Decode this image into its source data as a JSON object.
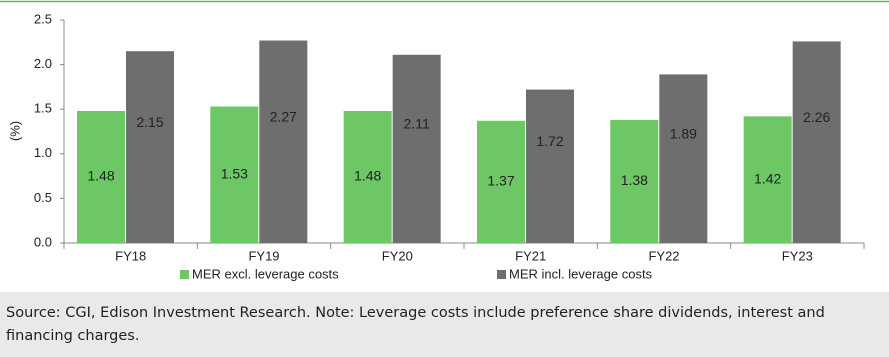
{
  "chart_data": {
    "type": "bar",
    "y_label": "(%)",
    "categories": [
      "FY18",
      "FY19",
      "FY20",
      "FY21",
      "FY22",
      "FY23"
    ],
    "series": [
      {
        "name": "MER excl. leverage costs",
        "color": "#6cc764",
        "values": [
          1.48,
          1.53,
          1.48,
          1.37,
          1.38,
          1.42
        ]
      },
      {
        "name": "MER incl. leverage costs",
        "color": "#6e6e6e",
        "values": [
          2.15,
          2.27,
          2.11,
          1.72,
          1.89,
          2.26
        ]
      }
    ],
    "ylim": [
      0,
      2.5
    ],
    "yticks": [
      {
        "value": 0,
        "label": "0.0"
      },
      {
        "value": 0.5,
        "label": "0.5"
      },
      {
        "value": 1,
        "label": "1.0"
      },
      {
        "value": 1.5,
        "label": "1.5"
      },
      {
        "value": 2,
        "label": "2.0"
      },
      {
        "value": 2.5,
        "label": "2.5"
      }
    ],
    "grid": false,
    "legend": "bottom"
  },
  "note": "Source: CGI, Edison Investment Research. Note: Leverage costs include preference share dividends, interest and financing charges."
}
